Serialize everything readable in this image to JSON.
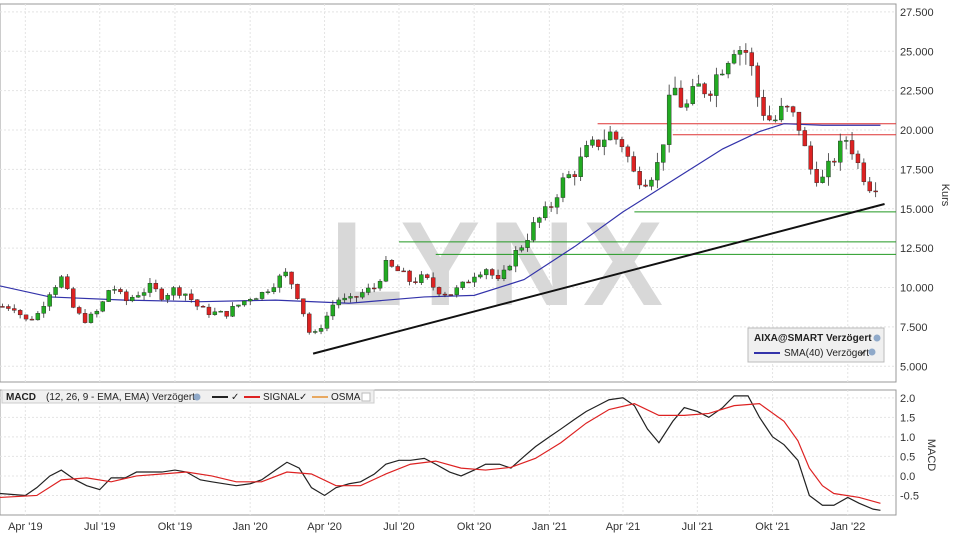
{
  "price_panel": {
    "legend": {
      "symbol": "AIXA@SMART Verzögert",
      "sma": "SMA(40) Verzögert"
    },
    "y_label": "Kurs",
    "watermark": "LYNX"
  },
  "macd_panel": {
    "legend": {
      "macd": "MACD",
      "params": "(12, 26, 9 - EMA, EMA) Verzögert",
      "signal": "SIGNAL",
      "osma": "OSMA"
    },
    "y_label": "MACD"
  },
  "colors": {
    "up": "#22aa22",
    "down": "#dd2222",
    "sma": "#3333aa",
    "macd": "#222222",
    "signal": "#dd2222",
    "osma": "#e8a860",
    "support": "#229922",
    "resistance": "#dd3333",
    "trend": "#111111"
  },
  "chart_data": [
    {
      "type": "candlestick",
      "name": "AIXA@SMART",
      "x_ticks": [
        "Apr '19",
        "Jul '19",
        "Okt '19",
        "Jan '20",
        "Apr '20",
        "Jul '20",
        "Okt '20",
        "Jan '21",
        "Apr '21",
        "Jul '21",
        "Okt '21",
        "Jan '22"
      ],
      "y_ticks": [
        "5.000",
        "7.500",
        "10.000",
        "12.500",
        "15.000",
        "17.500",
        "20.000",
        "22.500",
        "25.000",
        "27.500"
      ],
      "ylim": [
        4.0,
        28.0
      ],
      "close_series": [
        [
          "2019-03-18",
          8.8
        ],
        [
          "2019-04-01",
          7.9
        ],
        [
          "2019-04-15",
          8.2
        ],
        [
          "2019-05-01",
          9.8
        ],
        [
          "2019-05-15",
          10.6
        ],
        [
          "2019-06-01",
          8.4
        ],
        [
          "2019-06-15",
          7.9
        ],
        [
          "2019-07-01",
          8.6
        ],
        [
          "2019-07-15",
          10.2
        ],
        [
          "2019-08-01",
          9.1
        ],
        [
          "2019-08-15",
          9.6
        ],
        [
          "2019-09-01",
          10.0
        ],
        [
          "2019-09-15",
          9.5
        ],
        [
          "2019-10-01",
          9.9
        ],
        [
          "2019-10-15",
          9.6
        ],
        [
          "2019-11-01",
          8.6
        ],
        [
          "2019-11-15",
          8.4
        ],
        [
          "2019-12-01",
          8.3
        ],
        [
          "2019-12-15",
          8.8
        ],
        [
          "2020-01-01",
          9.4
        ],
        [
          "2020-01-15",
          9.6
        ],
        [
          "2020-02-01",
          10.4
        ],
        [
          "2020-02-15",
          10.9
        ],
        [
          "2020-03-01",
          9.3
        ],
        [
          "2020-03-16",
          6.7
        ],
        [
          "2020-04-01",
          7.9
        ],
        [
          "2020-04-15",
          9.3
        ],
        [
          "2020-05-01",
          9.1
        ],
        [
          "2020-05-15",
          9.6
        ],
        [
          "2020-06-01",
          10.0
        ],
        [
          "2020-06-15",
          11.4
        ],
        [
          "2020-07-01",
          11.0
        ],
        [
          "2020-07-15",
          10.4
        ],
        [
          "2020-08-01",
          10.6
        ],
        [
          "2020-08-15",
          9.9
        ],
        [
          "2020-09-01",
          9.6
        ],
        [
          "2020-09-15",
          10.0
        ],
        [
          "2020-10-01",
          10.9
        ],
        [
          "2020-10-15",
          11.3
        ],
        [
          "2020-11-01",
          10.2
        ],
        [
          "2020-11-15",
          11.8
        ],
        [
          "2020-12-01",
          12.9
        ],
        [
          "2020-12-15",
          14.1
        ],
        [
          "2021-01-01",
          15.0
        ],
        [
          "2021-01-15",
          16.6
        ],
        [
          "2021-02-01",
          17.4
        ],
        [
          "2021-02-15",
          18.6
        ],
        [
          "2021-03-01",
          19.2
        ],
        [
          "2021-03-15",
          19.8
        ],
        [
          "2021-04-01",
          19.1
        ],
        [
          "2021-04-15",
          17.1
        ],
        [
          "2021-05-01",
          16.9
        ],
        [
          "2021-05-15",
          17.9
        ],
        [
          "2021-06-01",
          22.9
        ],
        [
          "2021-06-15",
          21.2
        ],
        [
          "2021-07-01",
          22.7
        ],
        [
          "2021-07-15",
          22.6
        ],
        [
          "2021-08-01",
          24.2
        ],
        [
          "2021-08-15",
          25.4
        ],
        [
          "2021-09-01",
          24.9
        ],
        [
          "2021-09-15",
          21.6
        ],
        [
          "2021-10-01",
          20.4
        ],
        [
          "2021-10-15",
          21.4
        ],
        [
          "2021-11-01",
          20.5
        ],
        [
          "2021-11-15",
          17.6
        ],
        [
          "2021-12-01",
          16.8
        ],
        [
          "2021-12-15",
          18.2
        ],
        [
          "2022-01-01",
          19.6
        ],
        [
          "2022-01-15",
          17.6
        ],
        [
          "2022-02-01",
          16.2
        ],
        [
          "2022-02-10",
          17.3
        ]
      ],
      "sma40": [
        [
          "2019-03-01",
          10.1
        ],
        [
          "2019-05-01",
          9.4
        ],
        [
          "2019-08-01",
          9.2
        ],
        [
          "2019-11-01",
          9.1
        ],
        [
          "2020-02-01",
          9.2
        ],
        [
          "2020-05-01",
          9.0
        ],
        [
          "2020-08-01",
          9.4
        ],
        [
          "2020-10-01",
          9.5
        ],
        [
          "2020-12-01",
          10.5
        ],
        [
          "2021-02-01",
          12.6
        ],
        [
          "2021-04-01",
          14.8
        ],
        [
          "2021-06-01",
          16.8
        ],
        [
          "2021-08-01",
          18.8
        ],
        [
          "2021-09-15",
          19.9
        ],
        [
          "2021-10-15",
          20.4
        ],
        [
          "2021-12-01",
          20.3
        ],
        [
          "2022-02-10",
          20.3
        ]
      ],
      "trendline": [
        [
          "2020-03-18",
          5.8
        ],
        [
          "2022-02-15",
          15.3
        ]
      ],
      "horizontal_levels": [
        {
          "role": "resistance",
          "value": 20.4,
          "from": "2021-03-01"
        },
        {
          "role": "resistance",
          "value": 19.7,
          "from": "2021-06-01"
        },
        {
          "role": "support",
          "value": 14.8,
          "from": "2021-04-15"
        },
        {
          "role": "support",
          "value": 12.9,
          "from": "2020-07-01"
        },
        {
          "role": "support",
          "value": 12.1,
          "from": "2020-08-15"
        }
      ]
    },
    {
      "type": "line",
      "name": "MACD",
      "y_ticks": [
        "-0.5",
        "0.0",
        "0.5",
        "1.0",
        "1.5",
        "2.0"
      ],
      "ylim": [
        -1.0,
        2.2
      ],
      "series": [
        {
          "name": "MACD",
          "points": [
            [
              "2019-03-01",
              -0.45
            ],
            [
              "2019-04-01",
              -0.5
            ],
            [
              "2019-04-15",
              -0.3
            ],
            [
              "2019-05-01",
              0.0
            ],
            [
              "2019-05-15",
              0.15
            ],
            [
              "2019-06-01",
              -0.1
            ],
            [
              "2019-06-15",
              -0.25
            ],
            [
              "2019-07-01",
              -0.35
            ],
            [
              "2019-07-15",
              -0.05
            ],
            [
              "2019-08-01",
              -0.05
            ],
            [
              "2019-08-15",
              0.1
            ],
            [
              "2019-09-15",
              0.1
            ],
            [
              "2019-10-01",
              0.15
            ],
            [
              "2019-10-15",
              0.1
            ],
            [
              "2019-11-01",
              -0.1
            ],
            [
              "2019-11-15",
              -0.15
            ],
            [
              "2019-12-15",
              -0.25
            ],
            [
              "2020-01-01",
              -0.2
            ],
            [
              "2020-01-15",
              -0.1
            ],
            [
              "2020-02-01",
              0.15
            ],
            [
              "2020-02-15",
              0.35
            ],
            [
              "2020-03-01",
              0.2
            ],
            [
              "2020-03-16",
              -0.3
            ],
            [
              "2020-04-01",
              -0.5
            ],
            [
              "2020-04-15",
              -0.3
            ],
            [
              "2020-05-01",
              -0.2
            ],
            [
              "2020-05-15",
              -0.15
            ],
            [
              "2020-06-01",
              0.05
            ],
            [
              "2020-06-15",
              0.3
            ],
            [
              "2020-07-01",
              0.4
            ],
            [
              "2020-07-15",
              0.4
            ],
            [
              "2020-08-01",
              0.45
            ],
            [
              "2020-08-15",
              0.3
            ],
            [
              "2020-09-01",
              0.1
            ],
            [
              "2020-09-15",
              0.0
            ],
            [
              "2020-10-01",
              0.15
            ],
            [
              "2020-10-15",
              0.3
            ],
            [
              "2020-11-01",
              0.3
            ],
            [
              "2020-11-15",
              0.2
            ],
            [
              "2020-12-01",
              0.5
            ],
            [
              "2020-12-15",
              0.75
            ],
            [
              "2021-01-01",
              1.0
            ],
            [
              "2021-01-15",
              1.2
            ],
            [
              "2021-02-01",
              1.45
            ],
            [
              "2021-02-15",
              1.65
            ],
            [
              "2021-03-01",
              1.8
            ],
            [
              "2021-03-15",
              1.95
            ],
            [
              "2021-04-01",
              2.0
            ],
            [
              "2021-04-15",
              1.8
            ],
            [
              "2021-05-01",
              1.2
            ],
            [
              "2021-05-15",
              0.85
            ],
            [
              "2021-06-01",
              1.4
            ],
            [
              "2021-06-15",
              1.75
            ],
            [
              "2021-07-01",
              1.65
            ],
            [
              "2021-07-15",
              1.5
            ],
            [
              "2021-08-01",
              1.75
            ],
            [
              "2021-08-15",
              2.05
            ],
            [
              "2021-09-01",
              2.05
            ],
            [
              "2021-09-15",
              1.5
            ],
            [
              "2021-10-01",
              1.0
            ],
            [
              "2021-10-15",
              0.8
            ],
            [
              "2021-11-01",
              0.4
            ],
            [
              "2021-11-15",
              -0.5
            ],
            [
              "2021-12-01",
              -0.75
            ],
            [
              "2021-12-15",
              -0.75
            ],
            [
              "2022-01-01",
              -0.55
            ],
            [
              "2022-01-15",
              -0.7
            ],
            [
              "2022-02-01",
              -0.85
            ],
            [
              "2022-02-10",
              -0.88
            ]
          ]
        },
        {
          "name": "SIGNAL",
          "points": [
            [
              "2019-03-01",
              -0.55
            ],
            [
              "2019-04-15",
              -0.5
            ],
            [
              "2019-05-15",
              -0.1
            ],
            [
              "2019-06-15",
              -0.05
            ],
            [
              "2019-07-15",
              -0.15
            ],
            [
              "2019-08-15",
              0.0
            ],
            [
              "2019-09-15",
              0.05
            ],
            [
              "2019-10-15",
              0.1
            ],
            [
              "2019-11-15",
              0.0
            ],
            [
              "2019-12-15",
              -0.15
            ],
            [
              "2020-01-15",
              -0.15
            ],
            [
              "2020-02-15",
              0.1
            ],
            [
              "2020-03-16",
              0.05
            ],
            [
              "2020-04-15",
              -0.25
            ],
            [
              "2020-05-15",
              -0.25
            ],
            [
              "2020-06-15",
              0.05
            ],
            [
              "2020-07-15",
              0.3
            ],
            [
              "2020-08-15",
              0.38
            ],
            [
              "2020-09-15",
              0.2
            ],
            [
              "2020-10-15",
              0.15
            ],
            [
              "2020-11-15",
              0.22
            ],
            [
              "2020-12-15",
              0.45
            ],
            [
              "2021-01-15",
              0.85
            ],
            [
              "2021-02-15",
              1.35
            ],
            [
              "2021-03-15",
              1.7
            ],
            [
              "2021-04-15",
              1.85
            ],
            [
              "2021-05-15",
              1.55
            ],
            [
              "2021-06-15",
              1.55
            ],
            [
              "2021-07-15",
              1.6
            ],
            [
              "2021-08-15",
              1.8
            ],
            [
              "2021-09-15",
              1.85
            ],
            [
              "2021-10-15",
              1.4
            ],
            [
              "2021-11-01",
              0.9
            ],
            [
              "2021-11-15",
              0.2
            ],
            [
              "2021-12-01",
              -0.25
            ],
            [
              "2021-12-15",
              -0.45
            ],
            [
              "2022-01-15",
              -0.55
            ],
            [
              "2022-02-10",
              -0.7
            ]
          ]
        }
      ]
    }
  ]
}
